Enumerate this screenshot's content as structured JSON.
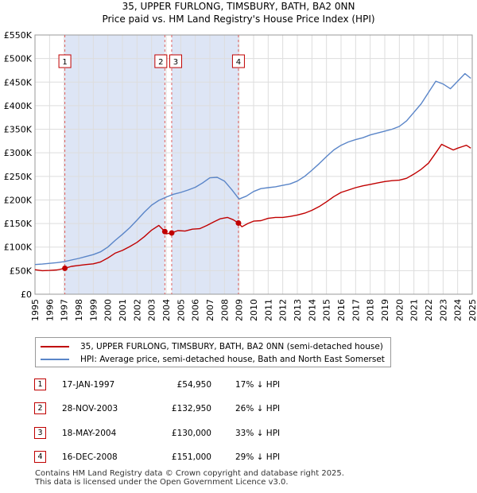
{
  "title": {
    "line1": "35, UPPER FURLONG, TIMSBURY, BATH, BA2 0NN",
    "line2": "Price paid vs. HM Land Registry's House Price Index (HPI)"
  },
  "colors": {
    "property": "#c00000",
    "hpi": "#5a85c8",
    "shade": "#dde5f5",
    "vline": "#e06060",
    "grid": "#dddddd"
  },
  "chart_data": {
    "type": "line",
    "title": "Price paid vs. HM Land Registry's House Price Index (HPI)",
    "xlabel": "",
    "ylabel": "",
    "xlim": [
      1995,
      2025
    ],
    "ylim": [
      0,
      550000
    ],
    "grid": true,
    "x_ticks": [
      "1995",
      "1996",
      "1997",
      "1998",
      "1999",
      "2000",
      "2001",
      "2002",
      "2003",
      "2004",
      "2005",
      "2006",
      "2007",
      "2008",
      "2009",
      "2010",
      "2011",
      "2012",
      "2013",
      "2014",
      "2015",
      "2016",
      "2017",
      "2018",
      "2019",
      "2020",
      "2021",
      "2022",
      "2023",
      "2024",
      "2025"
    ],
    "y_ticks": [
      {
        "value": 0,
        "label": "£0"
      },
      {
        "value": 50000,
        "label": "£50K"
      },
      {
        "value": 100000,
        "label": "£100K"
      },
      {
        "value": 150000,
        "label": "£150K"
      },
      {
        "value": 200000,
        "label": "£200K"
      },
      {
        "value": 250000,
        "label": "£250K"
      },
      {
        "value": 300000,
        "label": "£300K"
      },
      {
        "value": 350000,
        "label": "£350K"
      },
      {
        "value": 400000,
        "label": "£400K"
      },
      {
        "value": 450000,
        "label": "£450K"
      },
      {
        "value": 500000,
        "label": "£500K"
      },
      {
        "value": 550000,
        "label": "£550K"
      }
    ],
    "series": [
      {
        "name": "35, UPPER FURLONG, TIMSBURY, BATH, BA2 0NN (semi-detached house)",
        "color": "#c00000",
        "x": [
          1995.0,
          1995.5,
          1996.0,
          1996.5,
          1997.05,
          1997.5,
          1998.0,
          1998.5,
          1999.0,
          1999.5,
          2000.0,
          2000.5,
          2001.0,
          2001.5,
          2002.0,
          2002.5,
          2003.0,
          2003.5,
          2003.91,
          2004.0,
          2004.38,
          2004.8,
          2005.3,
          2005.8,
          2006.3,
          2006.8,
          2007.3,
          2007.7,
          2008.2,
          2008.6,
          2008.96,
          2009.2,
          2009.6,
          2010.0,
          2010.5,
          2011.0,
          2011.5,
          2012.0,
          2012.5,
          2013.0,
          2013.5,
          2014.0,
          2014.5,
          2015.0,
          2015.5,
          2016.0,
          2016.5,
          2017.0,
          2017.5,
          2018.0,
          2018.5,
          2019.0,
          2019.5,
          2020.0,
          2020.5,
          2021.0,
          2021.5,
          2022.0,
          2022.5,
          2022.9,
          2023.3,
          2023.7,
          2024.0,
          2024.3,
          2024.6,
          2024.9
        ],
        "y": [
          52000,
          50000,
          50500,
          51500,
          54950,
          59000,
          61000,
          63000,
          64500,
          68500,
          77000,
          87000,
          93000,
          101000,
          110000,
          122000,
          136000,
          146000,
          132950,
          128000,
          130000,
          135000,
          134000,
          138000,
          139000,
          146000,
          154000,
          160000,
          163000,
          158000,
          151000,
          143000,
          150000,
          155000,
          156000,
          161000,
          163000,
          163000,
          165000,
          168000,
          172000,
          178000,
          186000,
          196000,
          207000,
          216000,
          221000,
          226000,
          230000,
          233000,
          236000,
          239000,
          241000,
          242000,
          246000,
          255000,
          265000,
          278000,
          300000,
          318000,
          312000,
          306000,
          310000,
          313000,
          316000,
          310000
        ]
      },
      {
        "name": "HPI: Average price, semi-detached house, Bath and North East Somerset",
        "color": "#5a85c8",
        "x": [
          1995.0,
          1995.5,
          1996.0,
          1996.5,
          1997.0,
          1997.5,
          1998.0,
          1998.5,
          1999.0,
          1999.5,
          2000.0,
          2000.5,
          2001.0,
          2001.5,
          2002.0,
          2002.5,
          2003.0,
          2003.5,
          2004.0,
          2004.5,
          2005.0,
          2005.5,
          2006.0,
          2006.5,
          2007.0,
          2007.5,
          2008.0,
          2008.5,
          2009.0,
          2009.5,
          2010.0,
          2010.5,
          2011.0,
          2011.5,
          2012.0,
          2012.5,
          2013.0,
          2013.5,
          2014.0,
          2014.5,
          2015.0,
          2015.5,
          2016.0,
          2016.5,
          2017.0,
          2017.5,
          2018.0,
          2018.5,
          2019.0,
          2019.5,
          2020.0,
          2020.5,
          2021.0,
          2021.5,
          2022.0,
          2022.5,
          2023.0,
          2023.5,
          2024.0,
          2024.5,
          2024.9
        ],
        "y": [
          63000,
          64000,
          65500,
          67000,
          69000,
          72500,
          76000,
          80000,
          84000,
          90000,
          100000,
          114000,
          127000,
          141000,
          157000,
          174000,
          189000,
          199000,
          206000,
          212000,
          216000,
          221000,
          227000,
          236000,
          247000,
          248000,
          240000,
          222000,
          202000,
          208000,
          218000,
          224000,
          226000,
          228000,
          231000,
          234000,
          240000,
          250000,
          263000,
          277000,
          292000,
          306000,
          316000,
          323000,
          328000,
          332000,
          338000,
          342000,
          346000,
          350000,
          356000,
          368000,
          386000,
          404000,
          428000,
          452000,
          446000,
          436000,
          452000,
          468000,
          458000
        ]
      }
    ],
    "transactions": [
      {
        "num": "1",
        "x": 1997.05,
        "price": 54950,
        "date": "17-JAN-1997",
        "price_label": "£54,950",
        "hpi": "17% ↓ HPI"
      },
      {
        "num": "2",
        "x": 2003.91,
        "price": 132950,
        "date": "28-NOV-2003",
        "price_label": "£132,950",
        "hpi": "26% ↓ HPI"
      },
      {
        "num": "3",
        "x": 2004.38,
        "price": 130000,
        "date": "18-MAY-2004",
        "price_label": "£130,000",
        "hpi": "33% ↓ HPI"
      },
      {
        "num": "4",
        "x": 2008.96,
        "price": 151000,
        "date": "16-DEC-2008",
        "price_label": "£151,000",
        "hpi": "29% ↓ HPI"
      }
    ],
    "shaded_ranges": [
      [
        1997.05,
        2003.91
      ],
      [
        2004.38,
        2008.96
      ]
    ]
  },
  "legend": {
    "property": "35, UPPER FURLONG, TIMSBURY, BATH, BA2 0NN (semi-detached house)",
    "hpi": "HPI: Average price, semi-detached house, Bath and North East Somerset"
  },
  "footer": {
    "line1": "Contains HM Land Registry data © Crown copyright and database right 2025.",
    "line2": "This data is licensed under the Open Government Licence v3.0."
  }
}
